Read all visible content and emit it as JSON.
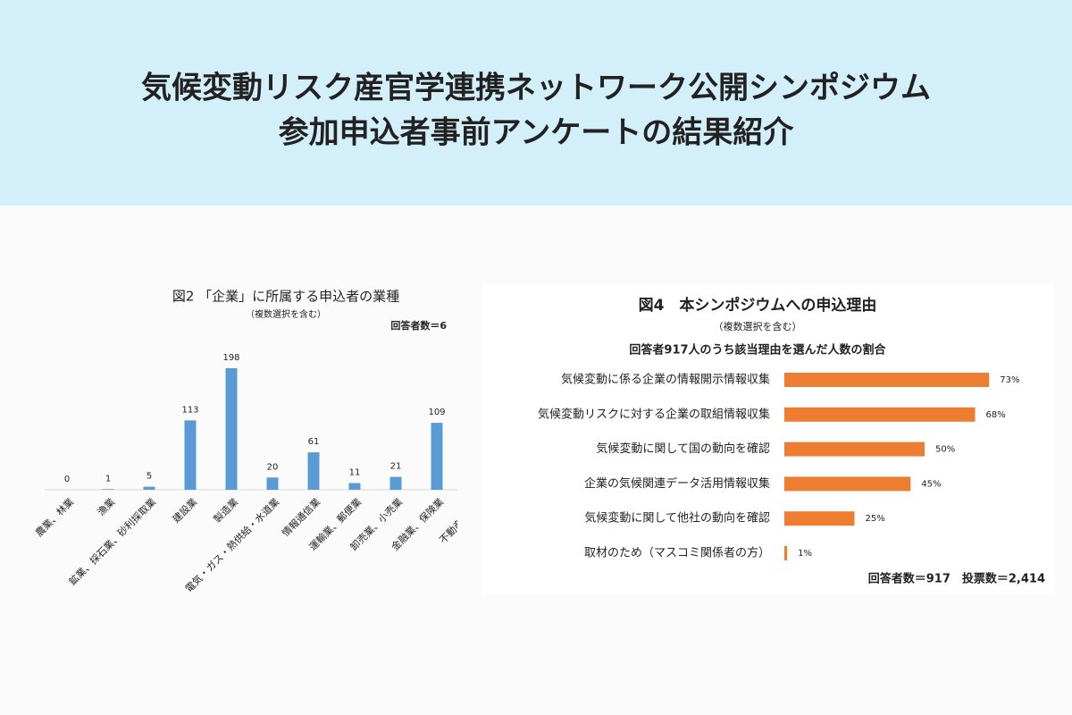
{
  "header": {
    "title_lines": [
      "気候変動リスク産官学連携ネットワーク公開シンポジウム",
      "参加申込者事前アンケートの結果紹介"
    ]
  },
  "chart_data": [
    {
      "type": "bar",
      "title": "図2 「企業」に所属する申込者の業種",
      "subtitle": "（複数選択を含む）",
      "note": "回答者数＝6",
      "categories": [
        "農業、林業",
        "漁業",
        "鉱業、採石業、砂利採取業",
        "建設業",
        "製造業",
        "電気・ガス・熱供給・水道業",
        "情報通信業",
        "運輸業、郵便業",
        "卸売業、小売業",
        "金融業、保険業",
        "不動産業、物"
      ],
      "values": [
        0,
        1,
        5,
        113,
        198,
        20,
        61,
        11,
        21,
        109,
        null
      ],
      "color": "#5b9bd5",
      "ylim": [
        0,
        200
      ]
    },
    {
      "type": "hbar",
      "title": "図4　本シンポジウムへの申込理由",
      "subtitle": "（複数選択を含む）",
      "subtitle2": "回答者917人のうち該当理由を選んだ人数の割合",
      "note": "回答者数＝917　投票数＝2,414",
      "categories": [
        "気候変動に係る企業の情報開示情報収集",
        "気候変動リスクに対する企業の取組情報収集",
        "気候変動に関して国の動向を確認",
        "企業の気候関連データ活用情報収集",
        "気候変動に関して他社の動向を確認",
        "取材のため（マスコミ関係者の方）"
      ],
      "values": [
        73,
        68,
        50,
        45,
        25,
        1
      ],
      "value_labels": [
        "73%",
        "68%",
        "50%",
        "45%",
        "25%",
        "1%"
      ],
      "color": "#ed7d31",
      "xlim": [
        0,
        100
      ]
    }
  ]
}
